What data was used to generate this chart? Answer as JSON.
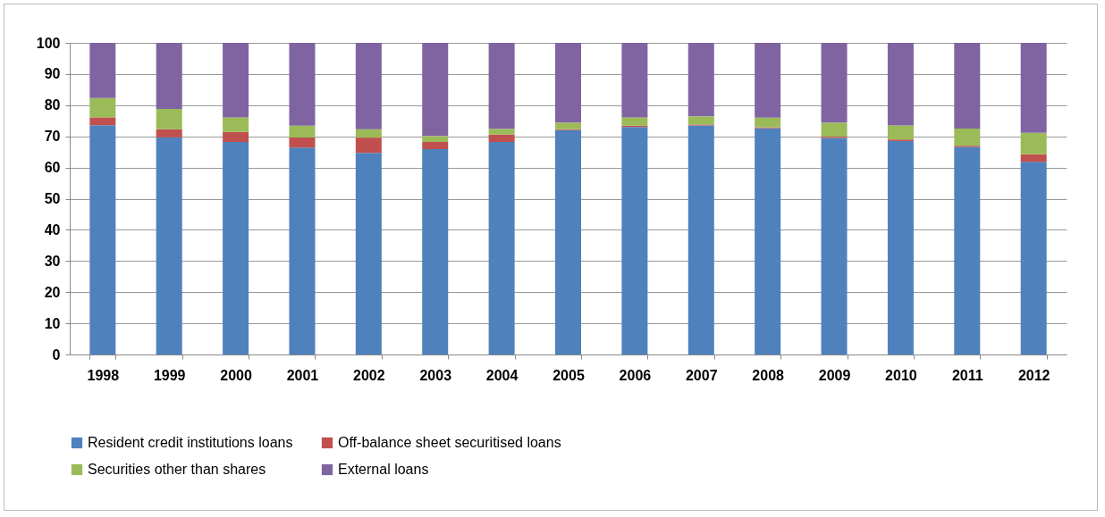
{
  "chart_data": {
    "type": "bar",
    "stacked": true,
    "categories": [
      "1998",
      "1999",
      "2000",
      "2001",
      "2002",
      "2003",
      "2004",
      "2005",
      "2006",
      "2007",
      "2008",
      "2009",
      "2010",
      "2011",
      "2012"
    ],
    "series": [
      {
        "name": "Resident credit institutions loans",
        "color": "#4f81bd",
        "values": [
          73.6,
          69.7,
          68.2,
          66.4,
          64.7,
          65.9,
          68.2,
          72.0,
          73.0,
          73.5,
          72.6,
          69.5,
          68.5,
          66.6,
          61.8
        ]
      },
      {
        "name": "Off-balance sheet securitised loans",
        "color": "#c0504d",
        "values": [
          2.5,
          2.6,
          3.2,
          3.2,
          4.9,
          2.3,
          2.4,
          0.3,
          0.4,
          0.3,
          0.3,
          0.4,
          0.5,
          0.4,
          2.5
        ]
      },
      {
        "name": "Securities other than shares",
        "color": "#9bbb59",
        "values": [
          6.2,
          6.5,
          4.7,
          3.8,
          2.7,
          1.9,
          1.8,
          2.1,
          2.7,
          2.6,
          3.1,
          4.5,
          4.5,
          5.5,
          6.8
        ]
      },
      {
        "name": "External loans",
        "color": "#8064a2",
        "values": [
          17.7,
          21.2,
          23.9,
          26.6,
          27.7,
          29.9,
          27.6,
          25.6,
          23.9,
          23.6,
          24.0,
          25.6,
          26.5,
          27.5,
          28.9
        ]
      }
    ],
    "ylim": [
      0,
      100
    ],
    "yticks": [
      0,
      10,
      20,
      30,
      40,
      50,
      60,
      70,
      80,
      90,
      100
    ],
    "grid": "y",
    "legend": "bottom"
  }
}
